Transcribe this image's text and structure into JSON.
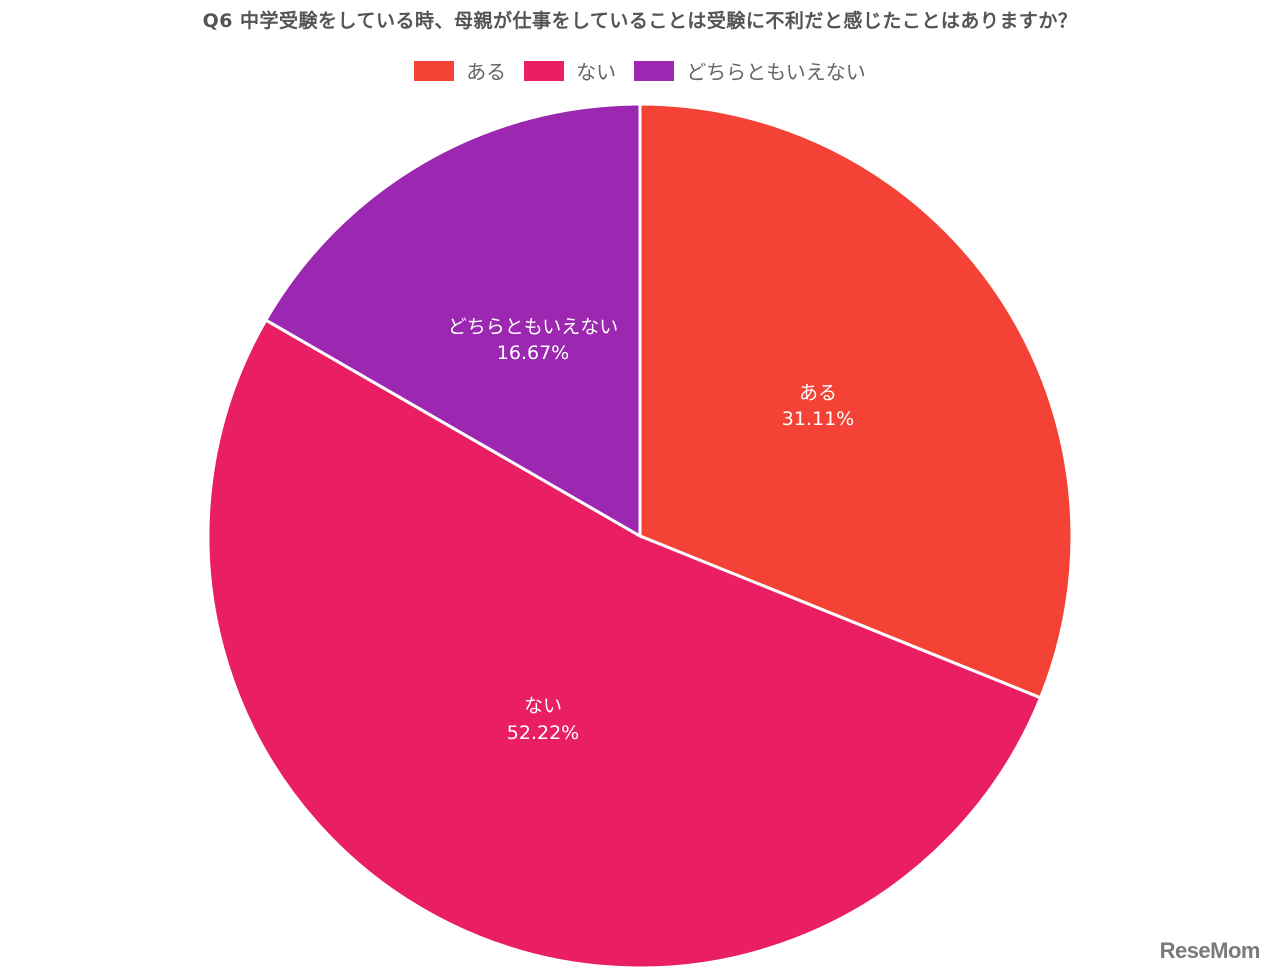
{
  "chart_data": {
    "type": "pie",
    "title": "Q6 中学受験をしている時、母親が仕事をしていることは受験に不利だと感じたことはありますか？",
    "categories": [
      "ある",
      "ない",
      "どちらともいえない"
    ],
    "values": [
      31.11,
      52.22,
      16.67
    ],
    "value_labels": [
      "31.11%",
      "52.22%",
      "16.67%"
    ],
    "colors": [
      "#f44336",
      "#e91e63",
      "#9c27b0"
    ],
    "legend_position": "top",
    "start_angle_deg": 0,
    "direction": "clockwise"
  },
  "legend": {
    "items": [
      {
        "label": "ある",
        "color": "#f44336"
      },
      {
        "label": "ない",
        "color": "#e91e63"
      },
      {
        "label": "どちらともいえない",
        "color": "#9c27b0"
      }
    ]
  },
  "slices": [
    {
      "label": "ある",
      "pct": "31.11%"
    },
    {
      "label": "ない",
      "pct": "52.22%"
    },
    {
      "label": "どちらともいえない",
      "pct": "16.67%"
    }
  ],
  "logo": {
    "text": "ReseMom"
  }
}
